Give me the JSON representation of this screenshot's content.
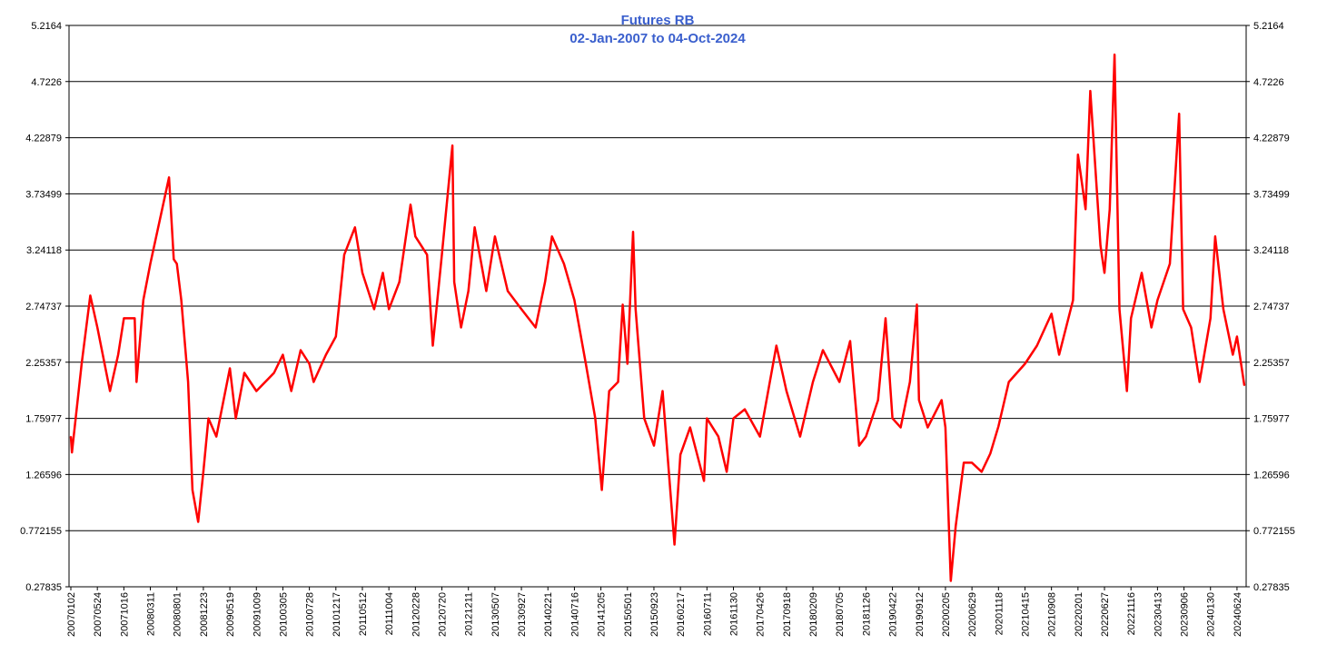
{
  "chart_data": {
    "type": "line",
    "title": "Futures RB",
    "subtitle": "02-Jan-2007 to 04-Oct-2024",
    "xlabel": "",
    "ylabel": "",
    "ylim": [
      0.27835,
      5.2164
    ],
    "y_ticks": [
      "0.27835",
      "0.772155",
      "1.26596",
      "1.75977",
      "2.25357",
      "2.74737",
      "3.24118",
      "3.73499",
      "4.22879",
      "4.7226",
      "5.2164"
    ],
    "x_ticks": [
      "20070102",
      "20070524",
      "20071016",
      "20080311",
      "20080801",
      "20081223",
      "20090519",
      "20091009",
      "20100305",
      "20100728",
      "20101217",
      "20110512",
      "20111004",
      "20120228",
      "20120720",
      "20121211",
      "20130507",
      "20130927",
      "20140221",
      "20140716",
      "20141205",
      "20150501",
      "20150923",
      "20160217",
      "20160711",
      "20161130",
      "20170426",
      "20170918",
      "20180209",
      "20180705",
      "20181126",
      "20190422",
      "20190912",
      "20200205",
      "20200629",
      "20201118",
      "20210415",
      "20210908",
      "20220201",
      "20220627",
      "20221116",
      "20230413",
      "20230906",
      "20240130",
      "20240624"
    ],
    "grid": "horizontal",
    "y_axis_sides": "both",
    "series": [
      {
        "color": "#ff0000",
        "points": [
          [
            "20070102",
            1.6
          ],
          [
            "20070108",
            1.46
          ],
          [
            "20070301",
            2.24
          ],
          [
            "20070416",
            2.84
          ],
          [
            "20070524",
            2.56
          ],
          [
            "20070801",
            2.0
          ],
          [
            "20070915",
            2.32
          ],
          [
            "20071016",
            2.64
          ],
          [
            "20071215",
            2.64
          ],
          [
            "20071225",
            2.08
          ],
          [
            "20080201",
            2.8
          ],
          [
            "20080311",
            3.12
          ],
          [
            "20080620",
            3.88
          ],
          [
            "20080715",
            3.16
          ],
          [
            "20080801",
            3.12
          ],
          [
            "20080825",
            2.8
          ],
          [
            "20081001",
            2.08
          ],
          [
            "20081025",
            1.13
          ],
          [
            "20081125",
            0.85
          ],
          [
            "20081223",
            1.29
          ],
          [
            "20090120",
            1.76
          ],
          [
            "20090305",
            1.6
          ],
          [
            "20090519",
            2.2
          ],
          [
            "20090620",
            1.76
          ],
          [
            "20090805",
            2.16
          ],
          [
            "20091009",
            2.0
          ],
          [
            "20100115",
            2.16
          ],
          [
            "20100305",
            2.32
          ],
          [
            "20100420",
            2.0
          ],
          [
            "20100610",
            2.36
          ],
          [
            "20100728",
            2.24
          ],
          [
            "20100820",
            2.08
          ],
          [
            "20101025",
            2.32
          ],
          [
            "20101217",
            2.48
          ],
          [
            "20110201",
            3.2
          ],
          [
            "20110401",
            3.44
          ],
          [
            "20110512",
            3.04
          ],
          [
            "20110715",
            2.72
          ],
          [
            "20110901",
            3.04
          ],
          [
            "20111004",
            2.72
          ],
          [
            "20111201",
            2.96
          ],
          [
            "20120201",
            3.64
          ],
          [
            "20120228",
            3.36
          ],
          [
            "20120501",
            3.2
          ],
          [
            "20120601",
            2.4
          ],
          [
            "20120720",
            3.2
          ],
          [
            "20120915",
            4.16
          ],
          [
            "20120925",
            2.96
          ],
          [
            "20121101",
            2.56
          ],
          [
            "20121211",
            2.88
          ],
          [
            "20130115",
            3.44
          ],
          [
            "20130320",
            2.88
          ],
          [
            "20130507",
            3.36
          ],
          [
            "20130715",
            2.88
          ],
          [
            "20130927",
            2.72
          ],
          [
            "20131215",
            2.56
          ],
          [
            "20140205",
            2.96
          ],
          [
            "20140315",
            3.36
          ],
          [
            "20140520",
            3.12
          ],
          [
            "20140716",
            2.8
          ],
          [
            "20140915",
            2.24
          ],
          [
            "20141105",
            1.76
          ],
          [
            "20141210",
            1.13
          ],
          [
            "20150120",
            2.0
          ],
          [
            "20150310",
            2.08
          ],
          [
            "20150405",
            2.76
          ],
          [
            "20150501",
            2.24
          ],
          [
            "20150601",
            3.4
          ],
          [
            "20150615",
            2.72
          ],
          [
            "20150801",
            1.76
          ],
          [
            "20150923",
            1.52
          ],
          [
            "20151110",
            2.0
          ],
          [
            "20160115",
            0.65
          ],
          [
            "20160217",
            1.44
          ],
          [
            "20160410",
            1.68
          ],
          [
            "20160625",
            1.21
          ],
          [
            "20160711",
            1.76
          ],
          [
            "20160910",
            1.6
          ],
          [
            "20161025",
            1.29
          ],
          [
            "20161130",
            1.76
          ],
          [
            "20170201",
            1.84
          ],
          [
            "20170426",
            1.6
          ],
          [
            "20170725",
            2.4
          ],
          [
            "20170918",
            2.0
          ],
          [
            "20171201",
            1.6
          ],
          [
            "20180209",
            2.08
          ],
          [
            "20180405",
            2.36
          ],
          [
            "20180705",
            2.08
          ],
          [
            "20180901",
            2.44
          ],
          [
            "20181020",
            1.52
          ],
          [
            "20181126",
            1.6
          ],
          [
            "20190201",
            1.92
          ],
          [
            "20190315",
            2.64
          ],
          [
            "20190422",
            1.76
          ],
          [
            "20190605",
            1.68
          ],
          [
            "20190725",
            2.08
          ],
          [
            "20190901",
            2.76
          ],
          [
            "20190912",
            1.92
          ],
          [
            "20191030",
            1.68
          ],
          [
            "20200115",
            1.92
          ],
          [
            "20200205",
            1.68
          ],
          [
            "20200305",
            0.33
          ],
          [
            "20200401",
            0.81
          ],
          [
            "20200515",
            1.37
          ],
          [
            "20200629",
            1.37
          ],
          [
            "20200820",
            1.29
          ],
          [
            "20201005",
            1.45
          ],
          [
            "20201118",
            1.69
          ],
          [
            "20210115",
            2.08
          ],
          [
            "20210415",
            2.24
          ],
          [
            "20210620",
            2.4
          ],
          [
            "20210908",
            2.68
          ],
          [
            "20211020",
            2.32
          ],
          [
            "20220105",
            2.8
          ],
          [
            "20220201",
            4.08
          ],
          [
            "20220315",
            3.6
          ],
          [
            "20220410",
            4.64
          ],
          [
            "20220605",
            3.28
          ],
          [
            "20220627",
            3.04
          ],
          [
            "20220725",
            3.6
          ],
          [
            "20220820",
            4.96
          ],
          [
            "20220915",
            2.72
          ],
          [
            "20221025",
            2.0
          ],
          [
            "20221116",
            2.64
          ],
          [
            "20230115",
            3.04
          ],
          [
            "20230310",
            2.56
          ],
          [
            "20230413",
            2.8
          ],
          [
            "20230620",
            3.12
          ],
          [
            "20230810",
            4.44
          ],
          [
            "20230901",
            2.72
          ],
          [
            "20231015",
            2.56
          ],
          [
            "20231201",
            2.08
          ],
          [
            "20240130",
            2.64
          ],
          [
            "20240225",
            3.36
          ],
          [
            "20240410",
            2.72
          ],
          [
            "20240601",
            2.32
          ],
          [
            "20240624",
            2.48
          ],
          [
            "20241004",
            2.05
          ]
        ]
      }
    ]
  }
}
